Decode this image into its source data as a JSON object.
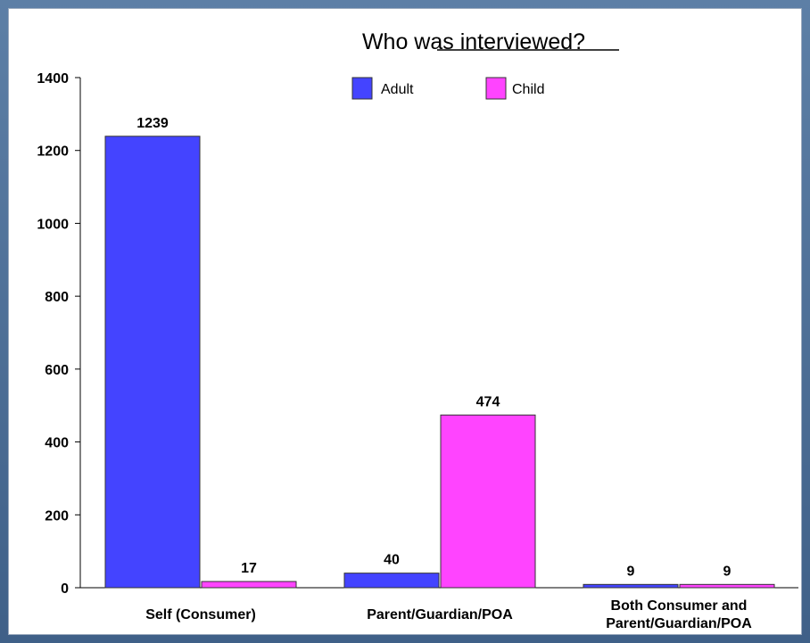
{
  "chart_data": {
    "type": "bar",
    "title": "Who was interviewed?",
    "categories": [
      [
        "Self (Consumer)"
      ],
      [
        "Parent/Guardian/POA"
      ],
      [
        "Both Consumer and",
        "Parent/Guardian/POA"
      ]
    ],
    "series": [
      {
        "name": "Adult",
        "values": [
          1239,
          40,
          9
        ],
        "color": "#4444ff"
      },
      {
        "name": "Child",
        "values": [
          17,
          474,
          9
        ],
        "color": "#ff44ff"
      }
    ],
    "ylim": [
      0,
      1400
    ],
    "yticks": [
      0,
      200,
      400,
      600,
      800,
      1000,
      1200,
      1400
    ],
    "legend_position": "top",
    "grid": false,
    "bar_stroke": "#333333"
  }
}
